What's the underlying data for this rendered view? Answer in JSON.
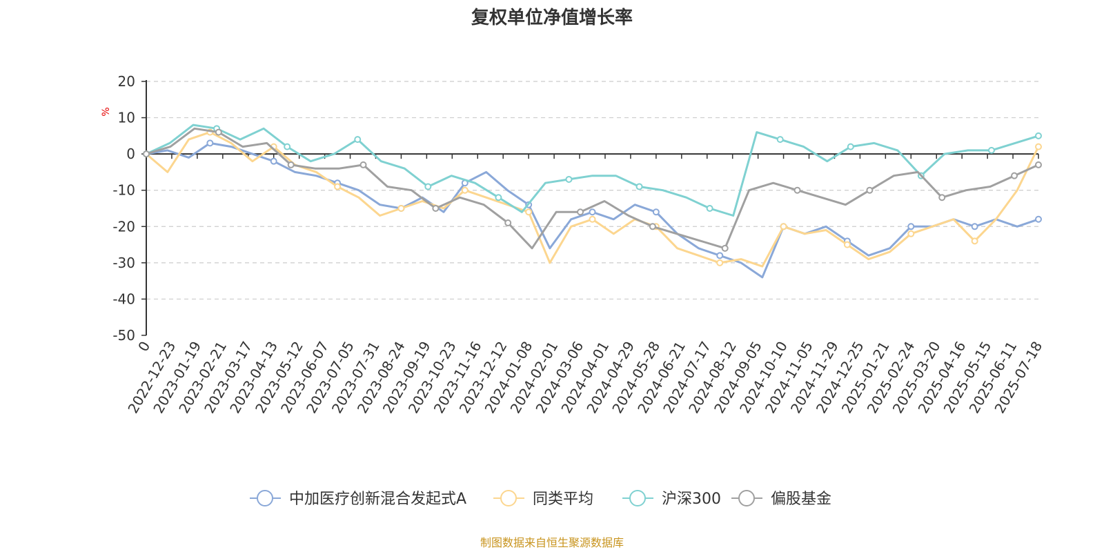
{
  "chart_data": {
    "type": "line",
    "title": "复权单位净值增长率",
    "ylabel": "%",
    "ylim": [
      -50,
      20
    ],
    "yticks": [
      20,
      10,
      0,
      -10,
      -20,
      -30,
      -40,
      -50
    ],
    "x_tick_labels": [
      "0",
      "2022-12-23",
      "2023-01-19",
      "2023-02-21",
      "2023-03-17",
      "2023-04-13",
      "2023-05-12",
      "2023-06-07",
      "2023-07-05",
      "2023-07-31",
      "2023-08-24",
      "2023-09-19",
      "2023-10-23",
      "2023-11-16",
      "2023-12-12",
      "2024-01-08",
      "2024-02-01",
      "2024-03-06",
      "2024-04-01",
      "2024-04-29",
      "2024-05-28",
      "2024-06-21",
      "2024-07-17",
      "2024-08-12",
      "2024-09-05",
      "2024-10-10",
      "2024-11-05",
      "2024-11-29",
      "2024-12-25",
      "2025-01-21",
      "2025-02-24",
      "2025-03-20",
      "2025-04-16",
      "2025-05-15",
      "2025-06-11",
      "2025-07-18"
    ],
    "grid": "horizontal-dashed",
    "legend_position": "bottom",
    "source_note": "制图数据来自恒生聚源数据库",
    "series": [
      {
        "name": "中加医疗创新混合发起式A",
        "color": "#8aa8d8",
        "values": [
          0,
          1,
          -1,
          3,
          2,
          0,
          -2,
          -5,
          -6,
          -8,
          -10,
          -14,
          -15,
          -12,
          -16,
          -8,
          -5,
          -10,
          -14,
          -26,
          -18,
          -16,
          -18,
          -14,
          -16,
          -22,
          -26,
          -28,
          -30,
          -34,
          -20,
          -22,
          -20,
          -24,
          -28,
          -26,
          -20,
          -20,
          -18,
          -20,
          -18,
          -20,
          -18
        ]
      },
      {
        "name": "同类平均",
        "color": "#fcd68f",
        "values": [
          0,
          -5,
          4,
          6,
          3,
          -2,
          2,
          -3,
          -5,
          -9,
          -12,
          -17,
          -15,
          -13,
          -15,
          -10,
          -12,
          -14,
          -16,
          -30,
          -20,
          -18,
          -22,
          -18,
          -20,
          -26,
          -28,
          -30,
          -29,
          -31,
          -20,
          -22,
          -21,
          -25,
          -29,
          -27,
          -22,
          -20,
          -18,
          -24,
          -18,
          -10,
          2
        ]
      },
      {
        "name": "沪深300",
        "color": "#7fd1d1",
        "values": [
          0,
          3,
          8,
          7,
          4,
          7,
          2,
          -2,
          0,
          4,
          -2,
          -4,
          -9,
          -6,
          -8,
          -12,
          -16,
          -8,
          -7,
          -6,
          -6,
          -9,
          -10,
          -12,
          -15,
          -17,
          6,
          4,
          2,
          -2,
          2,
          3,
          1,
          -6,
          0,
          1,
          1,
          3,
          5
        ]
      },
      {
        "name": "偏股基金",
        "color": "#a0a0a0",
        "values": [
          0,
          2,
          7,
          6,
          2,
          3,
          -3,
          -4,
          -4,
          -3,
          -9,
          -10,
          -15,
          -12,
          -14,
          -19,
          -26,
          -16,
          -16,
          -13,
          -17,
          -20,
          -22,
          -24,
          -26,
          -10,
          -8,
          -10,
          -12,
          -14,
          -10,
          -6,
          -5,
          -12,
          -10,
          -9,
          -6,
          -3
        ]
      }
    ]
  }
}
